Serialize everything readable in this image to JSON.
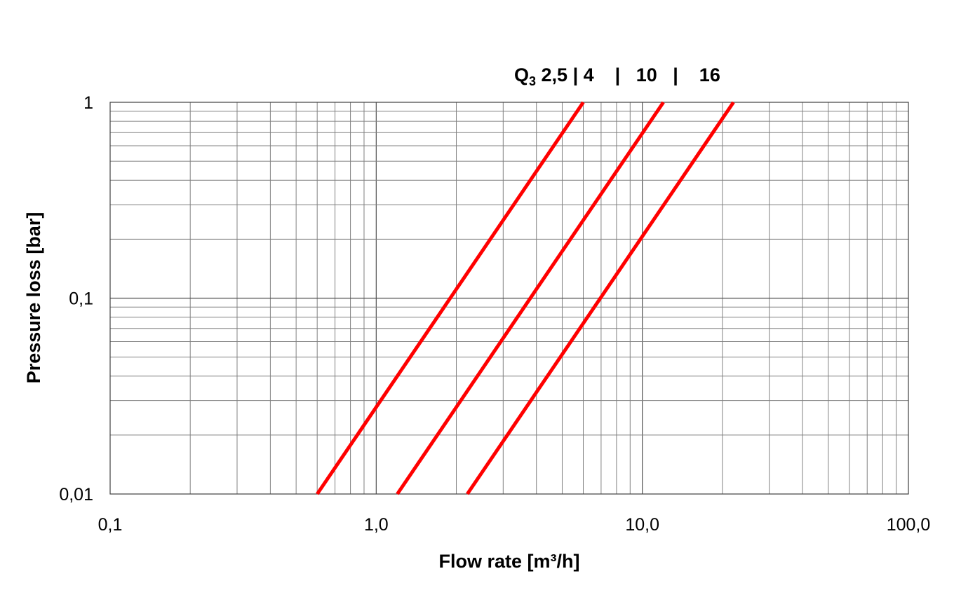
{
  "chart_data": {
    "type": "line",
    "x_scale": "log",
    "y_scale": "log",
    "xlim": [
      0.1,
      100
    ],
    "ylim": [
      0.01,
      1
    ],
    "x_ticks": [
      0.1,
      1,
      10,
      100
    ],
    "x_tick_labels": [
      "0,1",
      "1,0",
      "10,0",
      "100,0"
    ],
    "y_ticks": [
      0.01,
      0.1,
      1
    ],
    "y_tick_labels": [
      "0,01",
      "0,1",
      "1"
    ],
    "xlabel": "Flow rate [m³/h]",
    "ylabel": "Pressure loss [bar]",
    "grid": true,
    "legend": {
      "prefix": "Q",
      "subscript": "3",
      "text": " 2,5 | 4    |   10   |    16",
      "placement": "top-center"
    },
    "series": [
      {
        "label": "2,5 | 4",
        "color": "#ff0000",
        "x": [
          0.6,
          6.0
        ],
        "y": [
          0.01,
          1
        ]
      },
      {
        "label": "10",
        "color": "#ff0000",
        "x": [
          1.2,
          12.0
        ],
        "y": [
          0.01,
          1
        ]
      },
      {
        "label": "16",
        "color": "#ff0000",
        "x": [
          2.2,
          22.0
        ],
        "y": [
          0.01,
          1
        ]
      }
    ]
  }
}
